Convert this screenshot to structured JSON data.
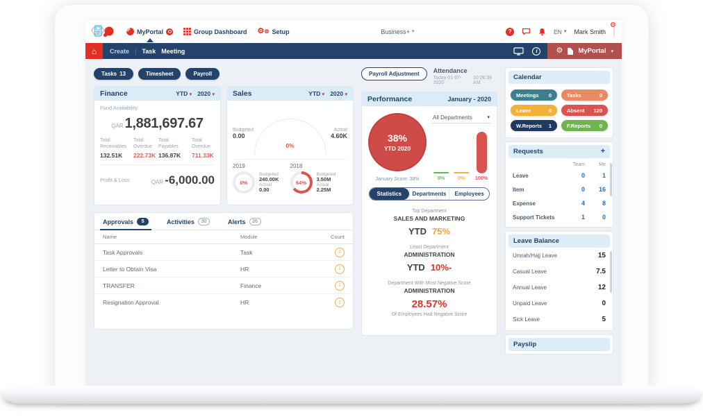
{
  "colors": {
    "navy": "#24436b",
    "bright_red": "#e03026",
    "brick_red": "#b0504f",
    "header_blue": "#d9ecf8",
    "content_bg": "#edf1f6",
    "negative_red": "#e25c58",
    "orange": "#f0a23c",
    "green_bar": "#5cb85c",
    "orange_bar": "#f0ad4e",
    "red_bar": "#d9534f",
    "requests_blue": "#2a6db8"
  },
  "topnav": {
    "items": [
      {
        "label": "MyPortal"
      },
      {
        "label": "Group Dashboard"
      },
      {
        "label": "Setup"
      }
    ],
    "business_label": "Business+",
    "lang": "EN",
    "user_name": "Mark Smith"
  },
  "subnav": {
    "create_label": "Create",
    "links": [
      {
        "label": "Task"
      },
      {
        "label": "Meeting"
      }
    ],
    "portal_label": "MyPortal"
  },
  "quick_buttons": [
    {
      "label": "Tasks",
      "count": "13"
    },
    {
      "label": "Timesheet",
      "count": ""
    },
    {
      "label": "Payroll",
      "count": ""
    }
  ],
  "payroll_adjustment_label": "Payroll Adjustment",
  "attendance": {
    "title": "Attendance",
    "date": "Today  01-07-2020",
    "time": "10:26:36 AM"
  },
  "finance": {
    "title": "Finance",
    "period": "YTD",
    "year": "2020",
    "fund_label": "Fund Availability",
    "currency": "QAR",
    "fund_value": "1,881,697.67",
    "stats": [
      {
        "label": "Total Receivables",
        "value": "132.51K",
        "negative": false
      },
      {
        "label": "Total Overdue",
        "value": "222.73K",
        "negative": true
      },
      {
        "label": "Total Payables",
        "value": "136.87K",
        "negative": false
      },
      {
        "label": "Total Overdue",
        "value": "711.33K",
        "negative": true
      }
    ],
    "pl_label": "Profit & Loss",
    "pl_currency": "QAR",
    "pl_value": "-6,000.00"
  },
  "sales": {
    "title": "Sales",
    "period": "YTD",
    "year": "2020",
    "gauge": {
      "percent": "0%",
      "budgeted_label": "Budgeted",
      "budgeted": "0.00",
      "actual_label": "Actual",
      "actual": "4.60K"
    },
    "years": [
      {
        "year": "2019",
        "percent": "0%",
        "value": 0,
        "budgeted_label": "Budgeted",
        "budgeted": "240.00K",
        "actual_label": "Actual",
        "actual": "0.00"
      },
      {
        "year": "2018",
        "percent": "64%",
        "value": 64,
        "budgeted_label": "Budgeted",
        "budgeted": "3.50M",
        "actual_label": "Actual",
        "actual": "2.25M"
      }
    ]
  },
  "performance": {
    "title": "Performance",
    "period": "January - 2020",
    "score_percent": "38%",
    "score_sub": "YTD 2020",
    "score_caption": "January Score: 38%",
    "dept_filter": "All Departments",
    "bars": [
      {
        "label": "0%",
        "value": 0,
        "color": "#5cb85c"
      },
      {
        "label": "0%",
        "value": 0,
        "color": "#f0ad4e"
      },
      {
        "label": "100%",
        "value": 100,
        "color": "#d9534f"
      }
    ],
    "tabs": [
      {
        "label": "Statistics",
        "active": true
      },
      {
        "label": "Departments",
        "active": false
      },
      {
        "label": "Employees",
        "active": false
      }
    ],
    "stat1": {
      "caption": "Top Department",
      "name": "SALES AND MARKETING",
      "prefix": "YTD",
      "value": "75%"
    },
    "stat2": {
      "caption": "Least Department",
      "name": "ADMINISTRATION",
      "prefix": "YTD",
      "value": "10%-"
    },
    "stat3": {
      "caption": "Department With Most Negative Score",
      "name": "ADMINISTRATION",
      "value": "28.57%",
      "sub": "Of Employees Had Negative Score"
    }
  },
  "approvals_panel": {
    "tabs": [
      {
        "label": "Approvals",
        "count": "5",
        "active": true
      },
      {
        "label": "Activities",
        "count": "30",
        "active": false
      },
      {
        "label": "Alerts",
        "count": "26",
        "active": false
      }
    ],
    "columns": {
      "name": "Name",
      "module": "Module",
      "count": "Count"
    },
    "rows": [
      {
        "name": "Task Approvals",
        "module": "Task",
        "count": "2"
      },
      {
        "name": "Letter to Obtain Visa",
        "module": "HR",
        "count": "1"
      },
      {
        "name": "TRANSFER",
        "module": "Finance",
        "count": "1"
      },
      {
        "name": "Resignation Approval",
        "module": "HR",
        "count": "1"
      }
    ]
  },
  "sidebar": {
    "calendar": {
      "title": "Calendar",
      "pills": [
        {
          "label": "Meetings",
          "count": "0",
          "color": "#3d7f8d"
        },
        {
          "label": "Tasks",
          "count": "0",
          "color": "#e98a64"
        },
        {
          "label": "Leave",
          "count": "0",
          "color": "#f2b138"
        },
        {
          "label": "Absent",
          "count": "120",
          "color": "#d9534f"
        },
        {
          "label": "W.Reports",
          "count": "1",
          "color": "#1f3a5f"
        },
        {
          "label": "F.Reports",
          "count": "0",
          "color": "#71b34e"
        }
      ]
    },
    "requests": {
      "title": "Requests",
      "add_label": "+",
      "col_team": "Team",
      "col_me": "Me",
      "rows": [
        {
          "label": "Leave",
          "team": "0",
          "me": "1"
        },
        {
          "label": "Item",
          "team": "0",
          "me": "16"
        },
        {
          "label": "Expense",
          "team": "4",
          "me": "8"
        },
        {
          "label": "Support Tickets",
          "team": "1",
          "me": "0"
        }
      ]
    },
    "leave_balance": {
      "title": "Leave Balance",
      "rows": [
        {
          "label": "Umrah/Hajj Leave",
          "value": "15"
        },
        {
          "label": "Casual Leave",
          "value": "7.5"
        },
        {
          "label": "Annual Leave",
          "value": "12"
        },
        {
          "label": "Unpaid Leave",
          "value": "0"
        },
        {
          "label": "Sick Leave",
          "value": "5"
        }
      ]
    },
    "payslip": {
      "title": "Payslip"
    }
  }
}
